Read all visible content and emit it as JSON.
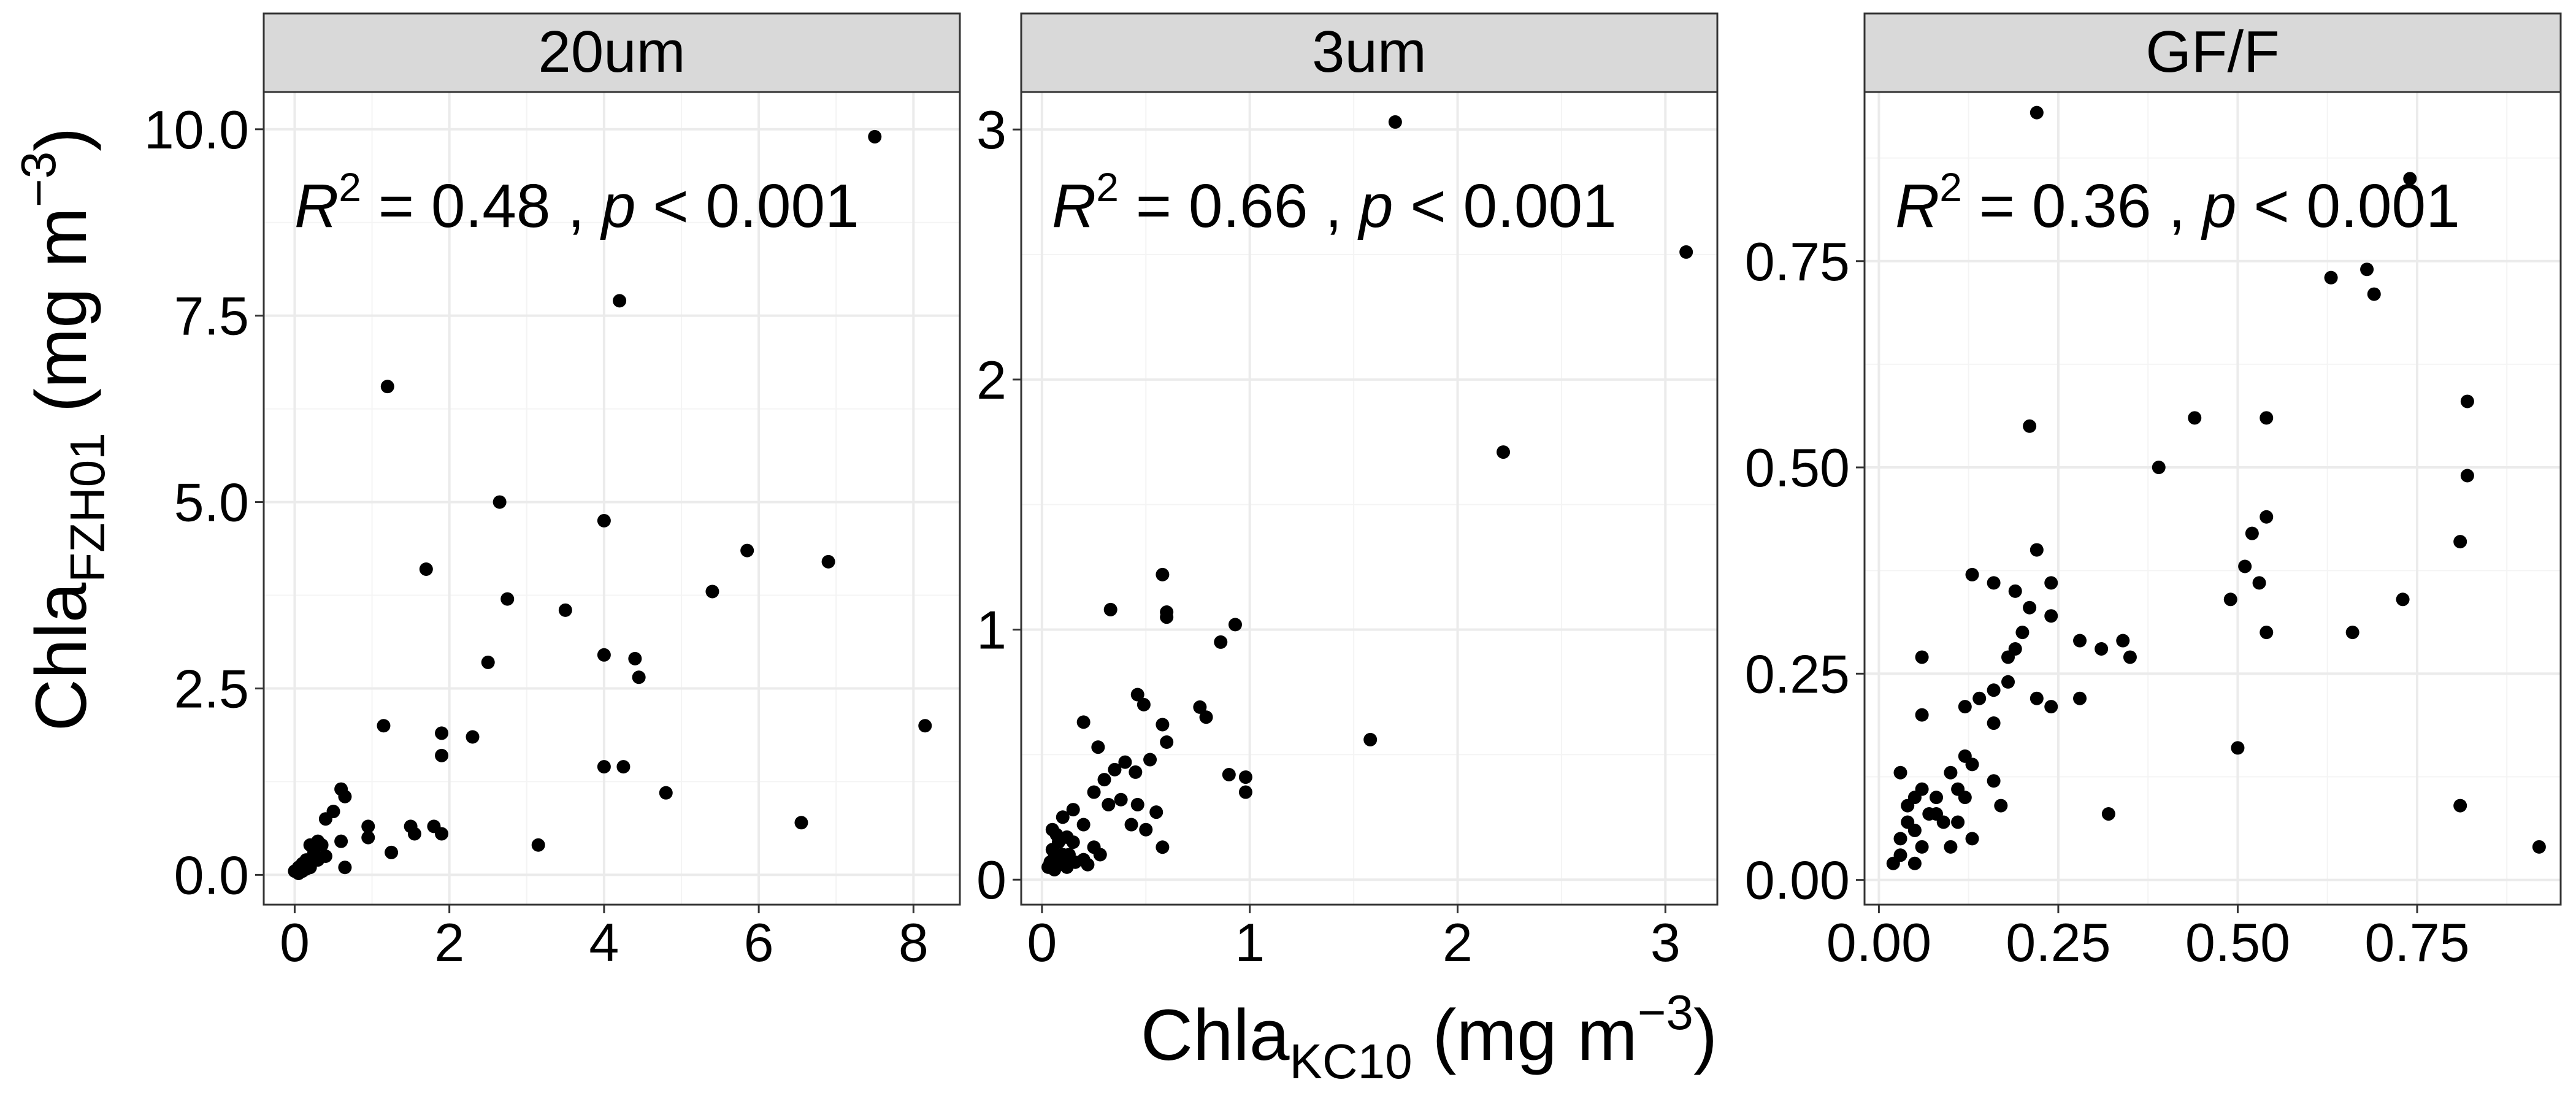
{
  "figure": {
    "y_title": {
      "main": "Chla",
      "sub": "FZH01",
      "unit_pre": " (mg m",
      "sup": "−3",
      "unit_post": ")"
    },
    "x_title": {
      "main": "Chla",
      "sub": "KC10",
      "unit_pre": " (mg m",
      "sup": "−3",
      "unit_post": ")"
    },
    "colors": {
      "strip": "#d9d9d9",
      "border": "#333333",
      "grid_major": "#ebebeb",
      "grid_minor": "#f4f4f4",
      "point": "#000000"
    }
  },
  "chart_data": [
    {
      "type": "scatter",
      "title": "20um",
      "annotation": {
        "r2": "0.48",
        "p": "0.001"
      },
      "xlim": [
        -0.4,
        8.6
      ],
      "ylim": [
        -0.4,
        10.5
      ],
      "xticks": [
        0,
        2,
        4,
        6,
        8
      ],
      "xtick_labels": [
        "0",
        "2",
        "4",
        "6",
        "8"
      ],
      "yticks": [
        0,
        2.5,
        5,
        7.5,
        10
      ],
      "ytick_labels": [
        "0.0",
        "2.5",
        "5.0",
        "7.5",
        "10.0"
      ],
      "grid": true,
      "points": [
        [
          7.5,
          9.9
        ],
        [
          4.2,
          7.7
        ],
        [
          1.2,
          6.55
        ],
        [
          2.65,
          5.0
        ],
        [
          4.0,
          4.75
        ],
        [
          5.85,
          4.35
        ],
        [
          1.7,
          4.1
        ],
        [
          6.9,
          4.2
        ],
        [
          5.4,
          3.8
        ],
        [
          2.75,
          3.7
        ],
        [
          3.5,
          3.55
        ],
        [
          4.0,
          2.95
        ],
        [
          4.4,
          2.9
        ],
        [
          2.5,
          2.85
        ],
        [
          4.45,
          2.65
        ],
        [
          1.15,
          2.0
        ],
        [
          8.15,
          2.0
        ],
        [
          1.9,
          1.9
        ],
        [
          2.3,
          1.85
        ],
        [
          1.9,
          1.6
        ],
        [
          4.0,
          1.45
        ],
        [
          4.25,
          1.45
        ],
        [
          0.6,
          1.15
        ],
        [
          0.65,
          1.05
        ],
        [
          4.8,
          1.1
        ],
        [
          0.5,
          0.85
        ],
        [
          0.4,
          0.75
        ],
        [
          0.95,
          0.65
        ],
        [
          1.5,
          0.65
        ],
        [
          1.8,
          0.65
        ],
        [
          6.55,
          0.7
        ],
        [
          1.9,
          0.55
        ],
        [
          1.55,
          0.55
        ],
        [
          0.95,
          0.5
        ],
        [
          0.6,
          0.45
        ],
        [
          0.3,
          0.45
        ],
        [
          0.35,
          0.4
        ],
        [
          0.2,
          0.4
        ],
        [
          3.15,
          0.4
        ],
        [
          0.25,
          0.3
        ],
        [
          0.4,
          0.25
        ],
        [
          1.25,
          0.3
        ],
        [
          0.15,
          0.2
        ],
        [
          0.3,
          0.2
        ],
        [
          0.1,
          0.15
        ],
        [
          0.65,
          0.1
        ],
        [
          0.05,
          0.1
        ],
        [
          0.2,
          0.1
        ],
        [
          0.1,
          0.05
        ],
        [
          0.0,
          0.05
        ],
        [
          0.05,
          0.02
        ],
        [
          0.15,
          0.08
        ]
      ]
    },
    {
      "type": "scatter",
      "title": "3um",
      "annotation": {
        "r2": "0.66",
        "p": "0.001"
      },
      "xlim": [
        -0.1,
        3.25
      ],
      "ylim": [
        -0.1,
        3.15
      ],
      "xticks": [
        0,
        1,
        2,
        3
      ],
      "xtick_labels": [
        "0",
        "1",
        "2",
        "3"
      ],
      "yticks": [
        0,
        1,
        2,
        3
      ],
      "ytick_labels": [
        "0",
        "1",
        "2",
        "3"
      ],
      "grid": true,
      "points": [
        [
          1.7,
          3.03
        ],
        [
          3.1,
          2.51
        ],
        [
          2.22,
          1.71
        ],
        [
          0.58,
          1.22
        ],
        [
          0.6,
          1.07
        ],
        [
          0.6,
          1.05
        ],
        [
          0.33,
          1.08
        ],
        [
          0.93,
          1.02
        ],
        [
          0.86,
          0.95
        ],
        [
          0.46,
          0.74
        ],
        [
          0.49,
          0.7
        ],
        [
          0.76,
          0.69
        ],
        [
          0.79,
          0.65
        ],
        [
          0.58,
          0.62
        ],
        [
          0.2,
          0.63
        ],
        [
          0.6,
          0.55
        ],
        [
          1.58,
          0.56
        ],
        [
          0.27,
          0.53
        ],
        [
          0.4,
          0.47
        ],
        [
          0.52,
          0.48
        ],
        [
          0.45,
          0.43
        ],
        [
          0.9,
          0.42
        ],
        [
          0.98,
          0.41
        ],
        [
          0.35,
          0.44
        ],
        [
          0.3,
          0.4
        ],
        [
          0.25,
          0.35
        ],
        [
          0.38,
          0.32
        ],
        [
          0.32,
          0.3
        ],
        [
          0.46,
          0.3
        ],
        [
          0.55,
          0.27
        ],
        [
          0.98,
          0.35
        ],
        [
          0.15,
          0.28
        ],
        [
          0.1,
          0.25
        ],
        [
          0.2,
          0.22
        ],
        [
          0.43,
          0.22
        ],
        [
          0.5,
          0.2
        ],
        [
          0.58,
          0.13
        ],
        [
          0.05,
          0.2
        ],
        [
          0.07,
          0.18
        ],
        [
          0.12,
          0.17
        ],
        [
          0.15,
          0.15
        ],
        [
          0.08,
          0.15
        ],
        [
          0.25,
          0.13
        ],
        [
          0.28,
          0.1
        ],
        [
          0.1,
          0.1
        ],
        [
          0.13,
          0.1
        ],
        [
          0.06,
          0.09
        ],
        [
          0.2,
          0.08
        ],
        [
          0.04,
          0.07
        ],
        [
          0.08,
          0.06
        ],
        [
          0.12,
          0.05
        ],
        [
          0.03,
          0.05
        ],
        [
          0.06,
          0.04
        ],
        [
          0.1,
          0.08
        ],
        [
          0.16,
          0.07
        ],
        [
          0.22,
          0.06
        ],
        [
          0.05,
          0.12
        ]
      ]
    },
    {
      "type": "scatter",
      "title": "GF/F",
      "annotation": {
        "r2": "0.36",
        "p": "0.001"
      },
      "xlim": [
        -0.02,
        0.95
      ],
      "ylim": [
        -0.03,
        0.955
      ],
      "xticks": [
        0,
        0.25,
        0.5,
        0.75
      ],
      "xtick_labels": [
        "0.00",
        "0.25",
        "0.50",
        "0.75"
      ],
      "yticks": [
        0,
        0.25,
        0.5,
        0.75
      ],
      "ytick_labels": [
        "0.00",
        "0.25",
        "0.50",
        "0.75"
      ],
      "grid": true,
      "points": [
        [
          0.22,
          0.93
        ],
        [
          0.74,
          0.85
        ],
        [
          0.63,
          0.73
        ],
        [
          0.68,
          0.74
        ],
        [
          0.69,
          0.71
        ],
        [
          0.82,
          0.58
        ],
        [
          0.54,
          0.56
        ],
        [
          0.44,
          0.56
        ],
        [
          0.21,
          0.55
        ],
        [
          0.39,
          0.5
        ],
        [
          0.82,
          0.49
        ],
        [
          0.54,
          0.44
        ],
        [
          0.52,
          0.42
        ],
        [
          0.81,
          0.41
        ],
        [
          0.22,
          0.4
        ],
        [
          0.51,
          0.38
        ],
        [
          0.13,
          0.37
        ],
        [
          0.24,
          0.36
        ],
        [
          0.16,
          0.36
        ],
        [
          0.53,
          0.36
        ],
        [
          0.19,
          0.35
        ],
        [
          0.49,
          0.34
        ],
        [
          0.21,
          0.33
        ],
        [
          0.73,
          0.34
        ],
        [
          0.24,
          0.32
        ],
        [
          0.2,
          0.3
        ],
        [
          0.54,
          0.3
        ],
        [
          0.66,
          0.3
        ],
        [
          0.34,
          0.29
        ],
        [
          0.28,
          0.29
        ],
        [
          0.31,
          0.28
        ],
        [
          0.18,
          0.27
        ],
        [
          0.19,
          0.28
        ],
        [
          0.06,
          0.27
        ],
        [
          0.35,
          0.27
        ],
        [
          0.18,
          0.24
        ],
        [
          0.16,
          0.23
        ],
        [
          0.14,
          0.22
        ],
        [
          0.22,
          0.22
        ],
        [
          0.12,
          0.21
        ],
        [
          0.24,
          0.21
        ],
        [
          0.28,
          0.22
        ],
        [
          0.06,
          0.2
        ],
        [
          0.16,
          0.19
        ],
        [
          0.5,
          0.16
        ],
        [
          0.12,
          0.15
        ],
        [
          0.13,
          0.14
        ],
        [
          0.1,
          0.13
        ],
        [
          0.03,
          0.13
        ],
        [
          0.16,
          0.12
        ],
        [
          0.06,
          0.11
        ],
        [
          0.05,
          0.1
        ],
        [
          0.08,
          0.1
        ],
        [
          0.12,
          0.1
        ],
        [
          0.17,
          0.09
        ],
        [
          0.04,
          0.09
        ],
        [
          0.08,
          0.08
        ],
        [
          0.81,
          0.09
        ],
        [
          0.32,
          0.08
        ],
        [
          0.04,
          0.07
        ],
        [
          0.09,
          0.07
        ],
        [
          0.11,
          0.07
        ],
        [
          0.05,
          0.06
        ],
        [
          0.13,
          0.05
        ],
        [
          0.03,
          0.05
        ],
        [
          0.06,
          0.04
        ],
        [
          0.1,
          0.04
        ],
        [
          0.03,
          0.03
        ],
        [
          0.05,
          0.02
        ],
        [
          0.02,
          0.02
        ],
        [
          0.92,
          0.04
        ],
        [
          0.07,
          0.08
        ],
        [
          0.11,
          0.11
        ]
      ]
    }
  ]
}
